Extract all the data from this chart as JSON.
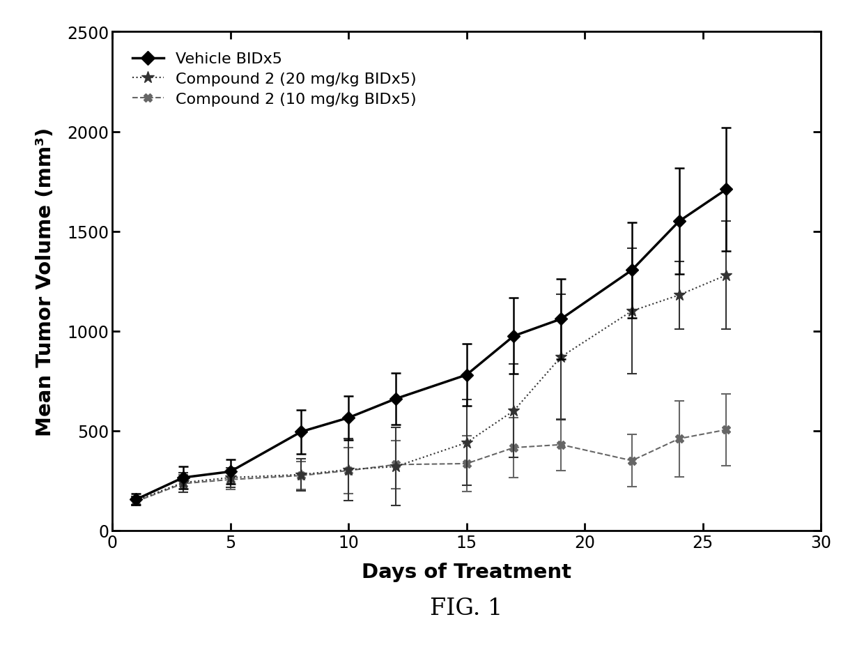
{
  "xlabel": "Days of Treatment",
  "ylabel": "Mean Tumor Volume (mm³)",
  "xlim": [
    0,
    30
  ],
  "ylim": [
    0,
    2500
  ],
  "xticks": [
    0,
    5,
    10,
    15,
    20,
    25,
    30
  ],
  "yticks": [
    0,
    500,
    1000,
    1500,
    2000,
    2500
  ],
  "vehicle": {
    "label": "Vehicle BIDx5",
    "x": [
      1,
      3,
      5,
      8,
      10,
      12,
      15,
      17,
      19,
      22,
      24,
      26
    ],
    "y": [
      155,
      265,
      295,
      495,
      565,
      660,
      780,
      975,
      1060,
      1305,
      1550,
      1710
    ],
    "yerr": [
      28,
      55,
      60,
      110,
      110,
      130,
      155,
      190,
      200,
      240,
      265,
      310
    ],
    "color": "#000000",
    "linewidth": 2.5,
    "marker": "D",
    "markersize": 9
  },
  "compound20": {
    "label": "Compound 2 (20 mg/kg BIDx5)",
    "x": [
      1,
      3,
      5,
      8,
      10,
      12,
      15,
      17,
      19,
      22,
      24,
      26
    ],
    "y": [
      150,
      240,
      265,
      280,
      305,
      320,
      440,
      600,
      870,
      1100,
      1180,
      1280
    ],
    "yerr": [
      22,
      50,
      50,
      80,
      155,
      195,
      215,
      235,
      315,
      315,
      170,
      270
    ],
    "color": "#333333",
    "linewidth": 1.5,
    "marker": "*",
    "markersize": 12,
    "linestyle": ":"
  },
  "compound10": {
    "label": "Compound 2 (10 mg/kg BIDx5)",
    "x": [
      1,
      3,
      5,
      8,
      10,
      12,
      15,
      17,
      19,
      22,
      24,
      26
    ],
    "y": [
      145,
      235,
      255,
      275,
      300,
      330,
      335,
      415,
      430,
      350,
      460,
      505
    ],
    "yerr": [
      20,
      45,
      50,
      70,
      115,
      120,
      140,
      150,
      130,
      130,
      190,
      180
    ],
    "color": "#666666",
    "linewidth": 1.5,
    "marker": "X",
    "markersize": 8,
    "linestyle": "--"
  },
  "legend_labels": [
    "Vehicle BIDx5",
    "Compound 2 (20 mg/kg BIDx5)",
    "Compound 2 (10 mg/kg BIDx5)"
  ],
  "background_color": "#ffffff",
  "tick_fontsize": 17,
  "label_fontsize": 21,
  "legend_fontsize": 16,
  "caption": "FIG. 1",
  "caption_fontsize": 24
}
